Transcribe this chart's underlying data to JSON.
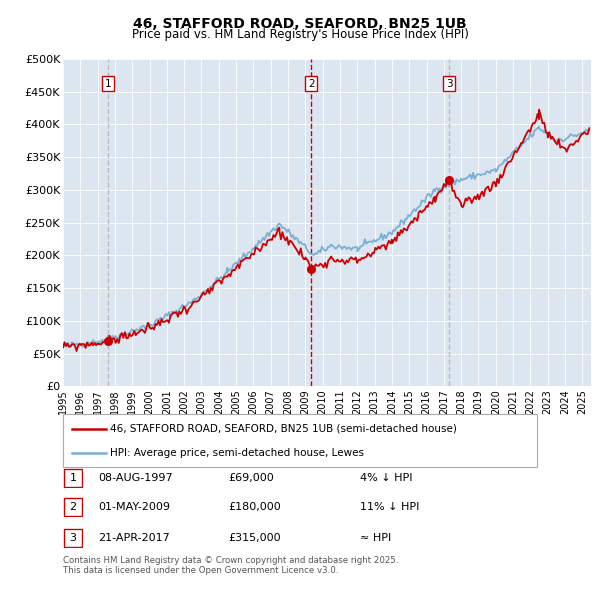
{
  "title1": "46, STAFFORD ROAD, SEAFORD, BN25 1UB",
  "title2": "Price paid vs. HM Land Registry's House Price Index (HPI)",
  "legend_red": "46, STAFFORD ROAD, SEAFORD, BN25 1UB (semi-detached house)",
  "legend_blue": "HPI: Average price, semi-detached house, Lewes",
  "transactions": [
    {
      "num": 1,
      "date": "08-AUG-1997",
      "price": 69000,
      "rel": "4% ↓ HPI",
      "year": 1997.6
    },
    {
      "num": 2,
      "date": "01-MAY-2009",
      "price": 180000,
      "rel": "11% ↓ HPI",
      "year": 2009.33
    },
    {
      "num": 3,
      "date": "21-APR-2017",
      "price": 315000,
      "rel": "≈ HPI",
      "year": 2017.3
    }
  ],
  "footnote": "Contains HM Land Registry data © Crown copyright and database right 2025.\nThis data is licensed under the Open Government Licence v3.0.",
  "plot_bg": "#dce6f1",
  "red_color": "#cc0000",
  "blue_color": "#7bafd4",
  "ylim": [
    0,
    500000
  ],
  "xlim_start": 1995.0,
  "xlim_end": 2025.5,
  "yticks": [
    0,
    50000,
    100000,
    150000,
    200000,
    250000,
    300000,
    350000,
    400000,
    450000,
    500000
  ],
  "ytick_labels": [
    "£0",
    "£50K",
    "£100K",
    "£150K",
    "£200K",
    "£250K",
    "£300K",
    "£350K",
    "£400K",
    "£450K",
    "£500K"
  ]
}
